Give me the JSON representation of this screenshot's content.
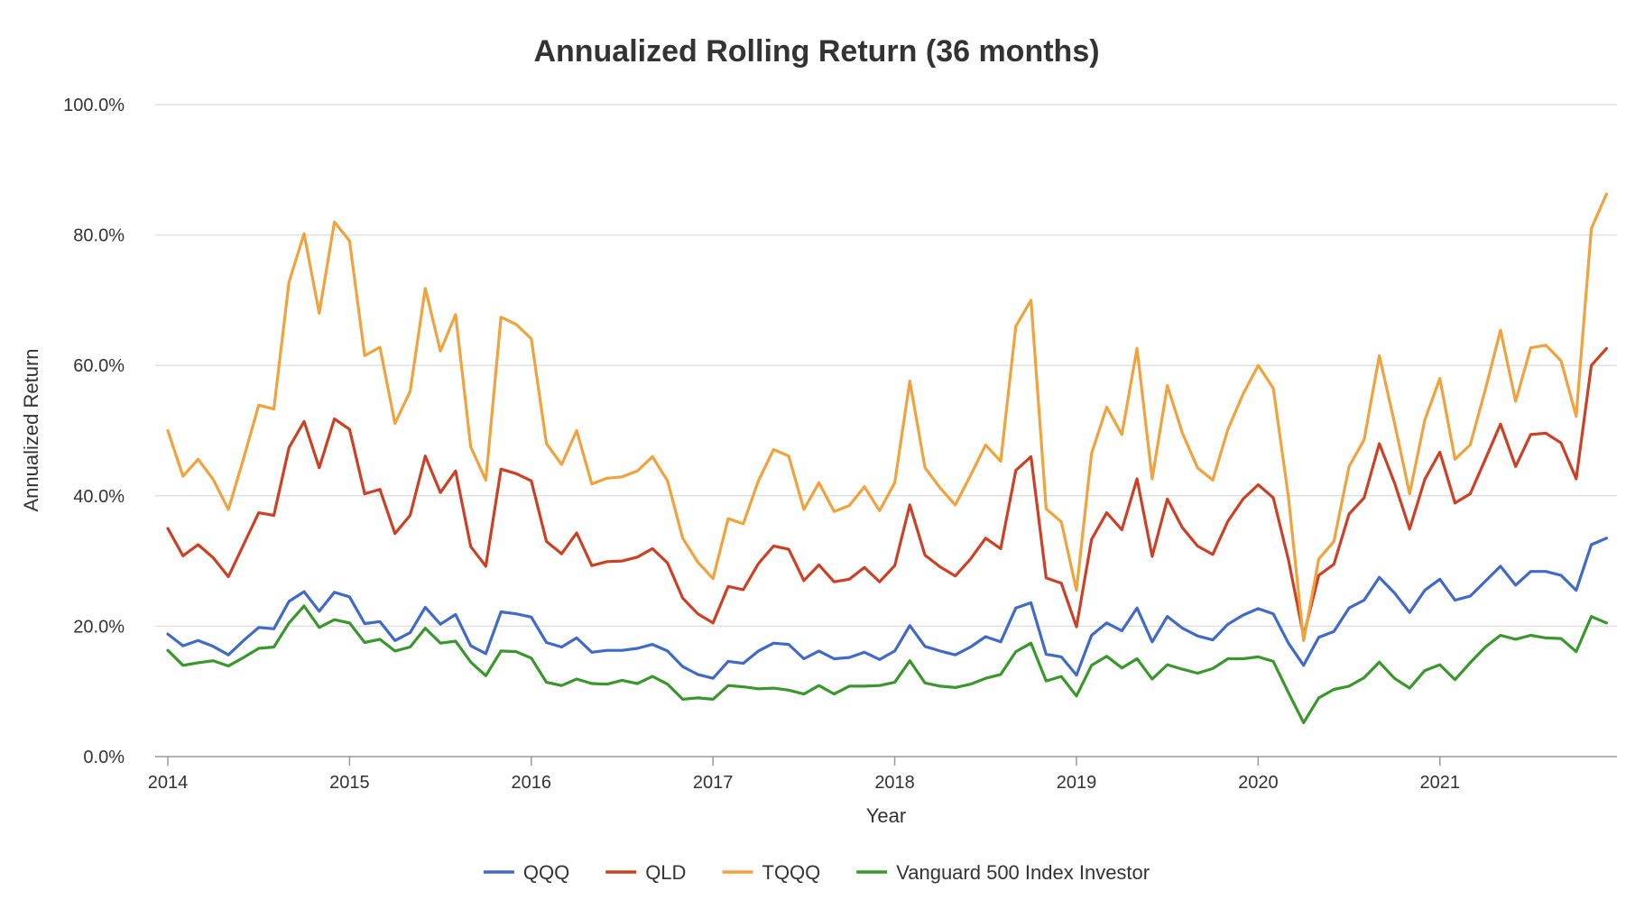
{
  "chart_data": {
    "type": "line",
    "title": "Annualized Rolling Return (36 months)",
    "xlabel": "Year",
    "ylabel": "Annualized Return",
    "xlim": [
      2014.0,
      2021.9
    ],
    "ylim": [
      0,
      100
    ],
    "y_ticks": [
      0,
      20,
      40,
      60,
      80,
      100
    ],
    "y_tick_labels": [
      "0.0%",
      "20.0%",
      "40.0%",
      "60.0%",
      "80.0%",
      "100.0%"
    ],
    "x_ticks": [
      2014,
      2015,
      2016,
      2017,
      2018,
      2019,
      2020,
      2021
    ],
    "x_tick_labels": [
      "2014",
      "2015",
      "2016",
      "2017",
      "2018",
      "2019",
      "2020",
      "2021"
    ],
    "grid": true,
    "legend": "bottom",
    "x": [
      2014.0,
      2014.0833,
      2014.1667,
      2014.25,
      2014.3333,
      2014.4167,
      2014.5,
      2014.5833,
      2014.6667,
      2014.75,
      2014.8333,
      2014.9167,
      2015.0,
      2015.0833,
      2015.1667,
      2015.25,
      2015.3333,
      2015.4167,
      2015.5,
      2015.5833,
      2015.6667,
      2015.75,
      2015.8333,
      2015.9167,
      2016.0,
      2016.0833,
      2016.1667,
      2016.25,
      2016.3333,
      2016.4167,
      2016.5,
      2016.5833,
      2016.6667,
      2016.75,
      2016.8333,
      2016.9167,
      2017.0,
      2017.0833,
      2017.1667,
      2017.25,
      2017.3333,
      2017.4167,
      2017.5,
      2017.5833,
      2017.6667,
      2017.75,
      2017.8333,
      2017.9167,
      2018.0,
      2018.0833,
      2018.1667,
      2018.25,
      2018.3333,
      2018.4167,
      2018.5,
      2018.5833,
      2018.6667,
      2018.75,
      2018.8333,
      2018.9167,
      2019.0,
      2019.0833,
      2019.1667,
      2019.25,
      2019.3333,
      2019.4167,
      2019.5,
      2019.5833,
      2019.6667,
      2019.75,
      2019.8333,
      2019.9167,
      2020.0,
      2020.0833,
      2020.1667,
      2020.25,
      2020.3333,
      2020.4167,
      2020.5,
      2020.5833,
      2020.6667,
      2020.75,
      2020.8333,
      2020.9167,
      2021.0,
      2021.0833,
      2021.1667,
      2021.25,
      2021.3333,
      2021.4167,
      2021.5,
      2021.5833,
      2021.6667,
      2021.75,
      2021.8333,
      2021.9167
    ],
    "series": [
      {
        "name": "QQQ",
        "color": "#4169c6",
        "values": [
          18.8,
          17.0,
          17.8,
          16.9,
          15.6,
          17.8,
          19.8,
          19.6,
          23.8,
          25.3,
          22.3,
          25.2,
          24.5,
          20.4,
          20.7,
          17.8,
          19.0,
          22.9,
          20.3,
          21.8,
          17.0,
          15.8,
          22.2,
          21.9,
          21.4,
          17.5,
          16.8,
          18.2,
          16.0,
          16.3,
          16.3,
          16.6,
          17.2,
          16.2,
          13.8,
          12.6,
          12.0,
          14.6,
          14.3,
          16.2,
          17.4,
          17.2,
          15.0,
          16.2,
          15.0,
          15.2,
          16.0,
          14.9,
          16.2,
          20.1,
          16.9,
          16.2,
          15.6,
          16.8,
          18.4,
          17.6,
          22.8,
          23.6,
          15.7,
          15.3,
          12.5,
          18.6,
          20.5,
          19.3,
          22.8,
          17.6,
          21.5,
          19.7,
          18.5,
          17.9,
          20.3,
          21.7,
          22.7,
          21.9,
          17.4,
          14.0,
          18.3,
          19.2,
          22.8,
          24.0,
          27.5,
          25.1,
          22.1,
          25.5,
          27.2,
          24.0,
          24.6,
          26.9,
          29.2,
          26.3,
          28.4,
          28.4,
          27.8,
          25.5,
          32.5,
          33.5
        ]
      },
      {
        "name": "QLD",
        "color": "#cc4125",
        "values": [
          35.0,
          30.8,
          32.5,
          30.5,
          27.6,
          32.5,
          37.4,
          37.0,
          47.4,
          51.4,
          44.3,
          51.8,
          50.2,
          40.3,
          41.0,
          34.2,
          37.0,
          46.1,
          40.5,
          43.8,
          32.2,
          29.2,
          44.1,
          43.4,
          42.3,
          33.0,
          31.1,
          34.3,
          29.3,
          29.9,
          30.0,
          30.6,
          31.9,
          29.7,
          24.3,
          21.9,
          20.5,
          26.1,
          25.6,
          29.6,
          32.3,
          31.8,
          27.0,
          29.4,
          26.8,
          27.2,
          29.0,
          26.8,
          29.3,
          38.6,
          30.9,
          29.1,
          27.7,
          30.3,
          33.5,
          31.9,
          43.9,
          46.0,
          27.4,
          26.6,
          19.9,
          33.3,
          37.4,
          34.8,
          42.6,
          30.7,
          39.5,
          35.1,
          32.3,
          31.0,
          36.1,
          39.5,
          41.7,
          39.7,
          30.2,
          18.5,
          27.8,
          29.5,
          37.2,
          39.7,
          48.0,
          42.0,
          34.9,
          42.5,
          46.7,
          38.9,
          40.3,
          45.6,
          51.0,
          44.5,
          49.4,
          49.6,
          48.1,
          42.6,
          60.0,
          62.6
        ]
      },
      {
        "name": "TQQQ",
        "color": "#f0a23c",
        "values": [
          50.0,
          43.0,
          45.6,
          42.5,
          37.9,
          45.7,
          53.9,
          53.3,
          72.8,
          80.2,
          68.0,
          82.0,
          79.1,
          61.5,
          62.8,
          51.1,
          56.0,
          71.8,
          62.2,
          67.8,
          47.5,
          42.4,
          67.4,
          66.3,
          64.1,
          48.0,
          44.8,
          50.0,
          41.8,
          42.7,
          42.9,
          43.8,
          46.0,
          42.3,
          33.5,
          29.8,
          27.3,
          36.5,
          35.7,
          42.3,
          47.1,
          46.1,
          37.9,
          42.0,
          37.6,
          38.5,
          41.4,
          37.7,
          42.0,
          57.6,
          44.3,
          41.2,
          38.6,
          43.1,
          47.8,
          45.3,
          66.0,
          70.0,
          38.0,
          36.0,
          25.5,
          46.5,
          53.6,
          49.4,
          62.6,
          42.6,
          56.9,
          49.6,
          44.3,
          42.4,
          50.2,
          55.6,
          60.0,
          56.5,
          39.8,
          17.8,
          30.3,
          33.0,
          44.5,
          48.6,
          61.5,
          51.2,
          40.3,
          51.6,
          58.0,
          45.6,
          47.8,
          56.3,
          65.4,
          54.5,
          62.7,
          63.1,
          60.7,
          52.2,
          81.0,
          86.3
        ]
      },
      {
        "name": "Vanguard 500 Index Investor",
        "color": "#3a962d",
        "values": [
          16.3,
          14.0,
          14.4,
          14.7,
          13.9,
          15.2,
          16.6,
          16.8,
          20.5,
          23.1,
          19.8,
          21.0,
          20.5,
          17.5,
          18.0,
          16.2,
          16.8,
          19.7,
          17.4,
          17.7,
          14.5,
          12.4,
          16.2,
          16.1,
          15.1,
          11.4,
          10.9,
          11.9,
          11.2,
          11.1,
          11.7,
          11.2,
          12.3,
          11.1,
          8.8,
          9.0,
          8.8,
          10.9,
          10.7,
          10.4,
          10.5,
          10.2,
          9.6,
          10.9,
          9.6,
          10.8,
          10.8,
          10.9,
          11.4,
          14.7,
          11.3,
          10.8,
          10.6,
          11.1,
          12.0,
          12.6,
          16.1,
          17.4,
          11.6,
          12.3,
          9.3,
          14.0,
          15.4,
          13.6,
          15.0,
          11.9,
          14.1,
          13.4,
          12.8,
          13.5,
          15.0,
          15.0,
          15.3,
          14.6,
          9.8,
          5.2,
          9.0,
          10.3,
          10.8,
          12.1,
          14.5,
          12.0,
          10.5,
          13.2,
          14.1,
          11.8,
          14.4,
          16.8,
          18.6,
          18.0,
          18.6,
          18.2,
          18.1,
          16.1,
          21.5,
          20.5
        ]
      }
    ]
  }
}
